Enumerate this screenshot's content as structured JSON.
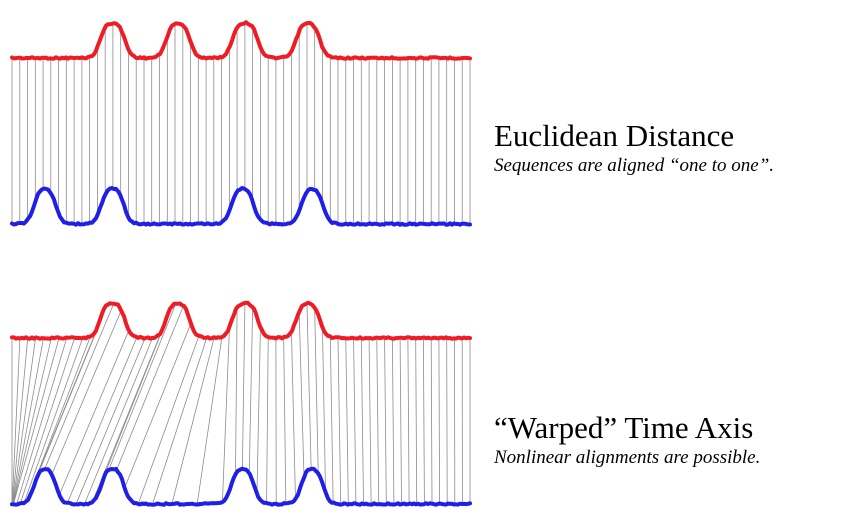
{
  "panels": [
    {
      "id": "euclidean",
      "title": "Euclidean Distance",
      "subtitle": "Sequences are aligned “one to one”.",
      "alignment": "one-to-one"
    },
    {
      "id": "warped",
      "title": "“Warped” Time Axis",
      "subtitle": "Nonlinear alignments are possible.",
      "alignment": "nonlinear"
    }
  ],
  "colors": {
    "upper_series": "#ee1c24",
    "lower_series": "#1f1fe6",
    "alignment_lines": "#8c8c8c",
    "text": "#000000"
  }
}
